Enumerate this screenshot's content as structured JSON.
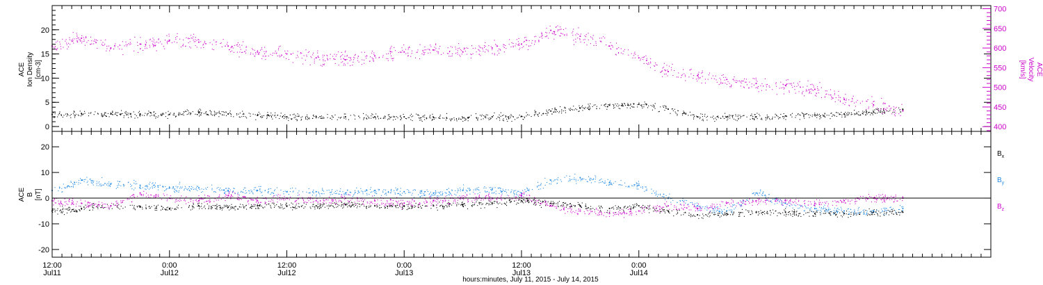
{
  "chart_data": [
    {
      "type": "scatter",
      "title": "",
      "ylabel": [
        "ACE",
        "Ion Density",
        "[cm-3]"
      ],
      "y2label": [
        "ACE",
        "Velocity",
        "[km/s]"
      ],
      "ylim": [
        -1,
        25
      ],
      "y2lim": [
        388,
        708
      ],
      "yticks": [
        0,
        5,
        10,
        15,
        20
      ],
      "y2ticks": [
        400,
        450,
        500,
        550,
        600,
        650,
        700
      ],
      "grid": false,
      "series": [
        {
          "name": "",
          "axis": "left",
          "color": "#000000",
          "x": [
            0,
            3,
            6,
            9,
            12,
            15,
            18,
            21,
            24,
            27,
            30,
            33,
            36,
            39,
            42,
            45,
            48,
            51,
            54,
            57,
            60,
            63,
            66,
            69,
            72,
            75,
            78,
            81,
            84,
            87
          ],
          "y": [
            2.5,
            2.7,
            2.6,
            2.6,
            2.5,
            3.0,
            2.6,
            2.3,
            2.0,
            2.0,
            2.0,
            2.0,
            2.0,
            1.9,
            1.8,
            2.0,
            2.1,
            3.2,
            3.8,
            4.4,
            4.6,
            3.6,
            2.0,
            2.0,
            2.0,
            2.2,
            2.4,
            2.6,
            3.0,
            3.5
          ]
        },
        {
          "name": "",
          "axis": "right",
          "color": "#cc00cc",
          "x": [
            0,
            3,
            6,
            9,
            12,
            15,
            18,
            21,
            24,
            27,
            30,
            33,
            36,
            39,
            42,
            45,
            48,
            51,
            54,
            57,
            60,
            63,
            66,
            69,
            72,
            75,
            78,
            81,
            84,
            87
          ],
          "y": [
            605,
            625,
            600,
            610,
            620,
            615,
            605,
            590,
            585,
            575,
            570,
            580,
            590,
            595,
            590,
            600,
            610,
            645,
            630,
            605,
            575,
            540,
            530,
            520,
            510,
            505,
            495,
            470,
            455,
            440
          ]
        }
      ]
    },
    {
      "type": "scatter",
      "title": "",
      "ylabel": [
        "ACE",
        "B",
        "[nT]"
      ],
      "ylim": [
        -23,
        26
      ],
      "yticks": [
        -20,
        -10,
        0,
        10,
        20
      ],
      "grid": false,
      "zero_line": true,
      "legend": "right",
      "series": [
        {
          "name": "Bx",
          "color": "#000000",
          "x": [
            0,
            3,
            6,
            9,
            12,
            15,
            18,
            21,
            24,
            27,
            30,
            33,
            36,
            39,
            42,
            45,
            48,
            51,
            54,
            57,
            60,
            63,
            66,
            69,
            72,
            75,
            78,
            81,
            84,
            87
          ],
          "y": [
            -5,
            -4,
            -3,
            -3.5,
            -4,
            -3,
            -3.5,
            -3,
            -3,
            -3,
            -2.5,
            -3,
            -3,
            -3,
            -2.5,
            -2,
            -1,
            -2,
            -3,
            -4,
            -3,
            -5,
            -6.5,
            -6,
            -5.5,
            -5.5,
            -6,
            -6,
            -5.5,
            -5.5
          ]
        },
        {
          "name": "By",
          "color": "#1e88e5",
          "x": [
            0,
            3,
            6,
            9,
            12,
            15,
            18,
            21,
            24,
            27,
            30,
            33,
            36,
            39,
            42,
            45,
            48,
            51,
            54,
            57,
            60,
            63,
            66,
            69,
            72,
            75,
            78,
            81,
            84,
            87
          ],
          "y": [
            3,
            7,
            5.5,
            5,
            4,
            4,
            3,
            3,
            2.5,
            2.5,
            2,
            3,
            2.5,
            2,
            3,
            3.5,
            2,
            7,
            8,
            6,
            5,
            0,
            -3,
            -5,
            2,
            -2,
            -4,
            -5,
            -5,
            -4
          ]
        },
        {
          "name": "Bz",
          "color": "#cc00cc",
          "x": [
            0,
            3,
            6,
            9,
            12,
            15,
            18,
            21,
            24,
            27,
            30,
            33,
            36,
            39,
            42,
            45,
            48,
            51,
            54,
            57,
            60,
            63,
            66,
            69,
            72,
            75,
            78,
            81,
            84,
            87
          ],
          "y": [
            -1,
            -2,
            -3,
            2,
            0,
            -1,
            1,
            -1,
            0,
            -1,
            0,
            -1,
            -2,
            -1,
            0,
            0,
            1,
            -3,
            -5,
            -6,
            -5,
            -3,
            -4,
            -2,
            -1,
            -1,
            -2,
            -1,
            0,
            0
          ]
        }
      ]
    }
  ],
  "x_axis": {
    "range_hours": [
      0,
      96
    ],
    "ticks": [
      {
        "t": 0,
        "time": "12:00",
        "date": "Jul11"
      },
      {
        "t": 12,
        "time": "0:00",
        "date": "Jul12"
      },
      {
        "t": 24,
        "time": "12:00",
        "date": "Jul12"
      },
      {
        "t": 36,
        "time": "0:00",
        "date": "Jul13"
      },
      {
        "t": 48,
        "time": "12:00",
        "date": "Jul13"
      },
      {
        "t": 60,
        "time": "0:00",
        "date": "Jul14"
      }
    ],
    "label": "hours:minutes, July 11, 2015 - July 14, 2015"
  },
  "legend": [
    {
      "main": "B",
      "sub": "x",
      "color": "#000000"
    },
    {
      "main": "B",
      "sub": "y",
      "color": "#1e88e5"
    },
    {
      "main": "B",
      "sub": "z",
      "color": "#cc00cc"
    }
  ]
}
